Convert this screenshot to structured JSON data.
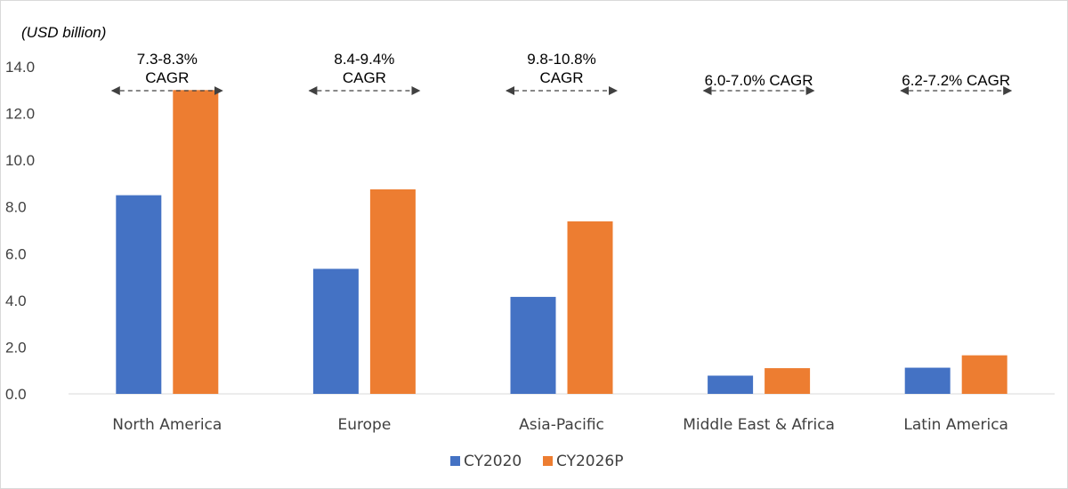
{
  "chart_data": {
    "type": "bar",
    "unit_label": "(USD billion)",
    "categories": [
      "North America",
      "Europe",
      "Asia-Pacific",
      "Middle East & Africa",
      "Latin America"
    ],
    "series": [
      {
        "name": "CY2020",
        "color": "#4472c4",
        "values": [
          8.5,
          5.35,
          4.15,
          0.78,
          1.12
        ]
      },
      {
        "name": "CY2026P",
        "color": "#ed7d31",
        "values": [
          13.0,
          8.75,
          7.38,
          1.1,
          1.65
        ]
      }
    ],
    "ylim": [
      0,
      14
    ],
    "yticks": [
      "0.0",
      "2.0",
      "4.0",
      "6.0",
      "8.0",
      "10.0",
      "12.0",
      "14.0"
    ],
    "grid": false,
    "legend": "bottom-center",
    "annotations": [
      {
        "category": "North America",
        "lines": [
          "7.3-8.3%",
          "CAGR"
        ]
      },
      {
        "category": "Europe",
        "lines": [
          "8.4-9.4%",
          "CAGR"
        ]
      },
      {
        "category": "Asia-Pacific",
        "lines": [
          "9.8-10.8%",
          "CAGR"
        ]
      },
      {
        "category": "Middle East & Africa",
        "lines": [
          "6.0-7.0% CAGR"
        ]
      },
      {
        "category": "Latin America",
        "lines": [
          "6.2-7.2% CAGR"
        ]
      }
    ]
  }
}
